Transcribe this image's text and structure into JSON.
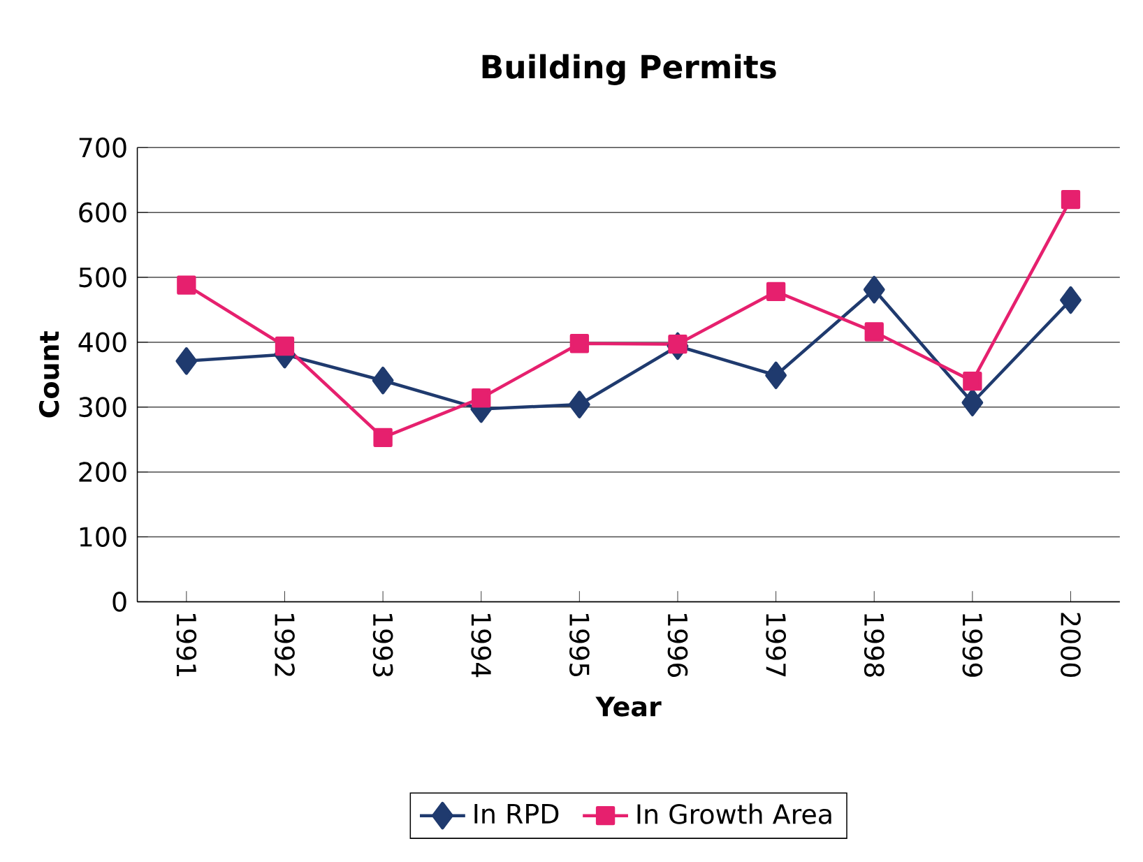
{
  "chart_data": {
    "type": "line",
    "title": "Building Permits",
    "xlabel": "Year",
    "ylabel": "Count",
    "categories": [
      "1991",
      "1992",
      "1993",
      "1994",
      "1995",
      "1996",
      "1997",
      "1998",
      "1999",
      "2000"
    ],
    "series": [
      {
        "name": "In RPD",
        "color": "#1f3a6e",
        "marker": "diamond",
        "values": [
          371,
          381,
          341,
          297,
          304,
          394,
          349,
          481,
          307,
          465
        ]
      },
      {
        "name": "In Growth Area",
        "color": "#e6206e",
        "marker": "square",
        "values": [
          488,
          394,
          253,
          314,
          398,
          397,
          478,
          416,
          340,
          620
        ]
      }
    ],
    "ylim": [
      0,
      700
    ],
    "yticks": [
      0,
      100,
      200,
      300,
      400,
      500,
      600,
      700
    ],
    "grid": "y",
    "legend": "bottom"
  }
}
